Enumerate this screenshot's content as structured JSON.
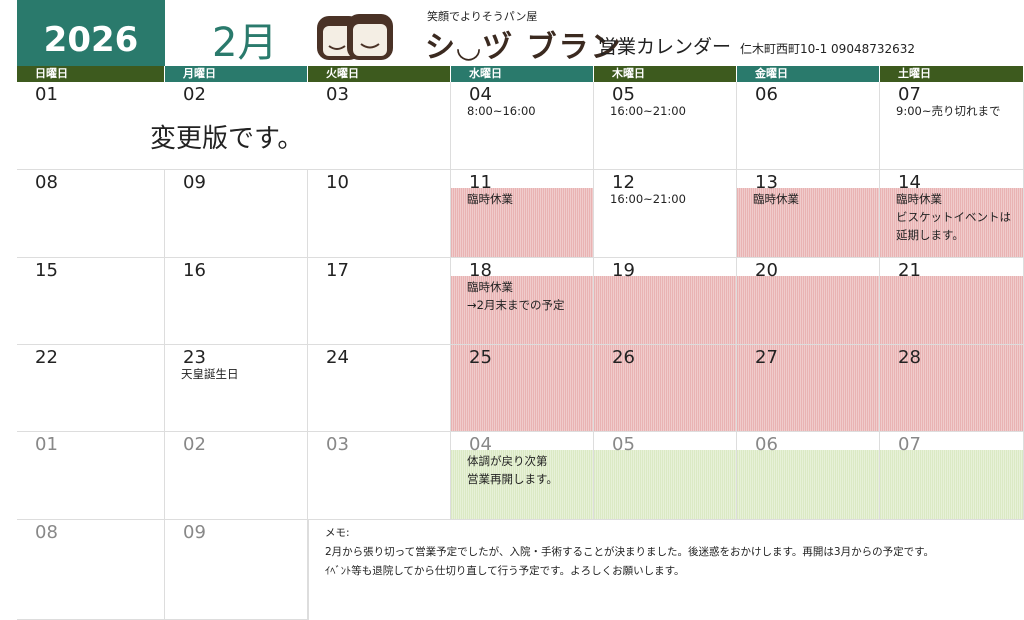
{
  "header": {
    "year": "2026",
    "month": "2月",
    "tagline": "笑顔でよりそうパン屋",
    "shop_name": "シ◡ヅ ブラン",
    "calendar_title": "営業カレンダー",
    "address_phone": "仁木町西町10-1  09048732632"
  },
  "weekdays": [
    "日曜日",
    "月曜日",
    "火曜日",
    "水曜日",
    "木曜日",
    "金曜日",
    "土曜日"
  ],
  "colors": {
    "teal": "#2a7a6c",
    "olive": "#3d5a1e",
    "closed": "#e9b3b3",
    "reopen": "#dbe9c4"
  },
  "banner": "変更版です。",
  "weeks": [
    [
      {
        "d": "01"
      },
      {
        "d": "02"
      },
      {
        "d": "03"
      },
      {
        "d": "04",
        "note": "8:00~16:00"
      },
      {
        "d": "05",
        "note": "16:00~21:00"
      },
      {
        "d": "06"
      },
      {
        "d": "07",
        "note": "9:00~売り切れまで"
      }
    ],
    [
      {
        "d": "08"
      },
      {
        "d": "09"
      },
      {
        "d": "10"
      },
      {
        "d": "11",
        "note": "臨時休業",
        "fill": "pink"
      },
      {
        "d": "12",
        "note": "16:00~21:00"
      },
      {
        "d": "13",
        "note": "臨時休業",
        "fill": "pink"
      },
      {
        "d": "14",
        "note": "臨時休業\nビスケットイベントは\n延期します。",
        "fill": "pink"
      }
    ],
    [
      {
        "d": "15"
      },
      {
        "d": "16"
      },
      {
        "d": "17"
      },
      {
        "d": "18",
        "note": "臨時休業\n→2月末までの予定",
        "fill": "pink"
      },
      {
        "d": "19",
        "fill": "pink"
      },
      {
        "d": "20",
        "fill": "pink"
      },
      {
        "d": "21",
        "fill": "pink"
      }
    ],
    [
      {
        "d": "22"
      },
      {
        "d": "23",
        "note": "天皇誕生日"
      },
      {
        "d": "24"
      },
      {
        "d": "25",
        "fill": "pinkall"
      },
      {
        "d": "26",
        "fill": "pinkall"
      },
      {
        "d": "27",
        "fill": "pinkall"
      },
      {
        "d": "28",
        "fill": "pinkall"
      }
    ],
    [
      {
        "d": "01",
        "dim": true
      },
      {
        "d": "02",
        "dim": true
      },
      {
        "d": "03",
        "dim": true
      },
      {
        "d": "04",
        "dim": true,
        "note": "体調が戻り次第\n営業再開します。",
        "fill": "green"
      },
      {
        "d": "05",
        "dim": true,
        "fill": "green"
      },
      {
        "d": "06",
        "dim": true,
        "fill": "green"
      },
      {
        "d": "07",
        "dim": true,
        "fill": "green"
      }
    ],
    [
      {
        "d": "08",
        "dim": true
      },
      {
        "d": "09",
        "dim": true
      }
    ]
  ],
  "memo": {
    "label": "メモ:",
    "lines": [
      "2月から張り切って営業予定でしたが、入院・手術することが決まりました。後迷惑をおかけします。再開は3月からの予定です。",
      "ｲﾍﾞﾝﾄ等も退院してから仕切り直して行う予定です。よろしくお願いします。"
    ]
  }
}
